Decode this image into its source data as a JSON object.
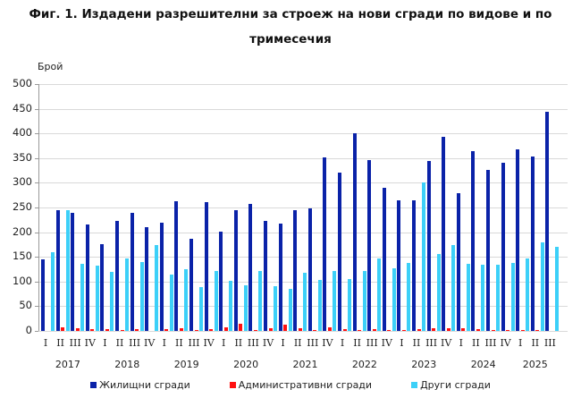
{
  "title_line1": "Фиг. 1. Издадени разрешителни за строеж на нови сгради по видове и по",
  "title_line2": "тримесечия",
  "colors": {
    "residential": "#0a22a8",
    "administrative": "#ff1010",
    "other": "#3cd0f8"
  },
  "chart_data": {
    "type": "bar",
    "title": "Фиг. 1. Издадени разрешителни за строеж на нови сгради по видове и по тримесечия",
    "xlabel": "",
    "ylabel": "Брой",
    "ylim": [
      0,
      500
    ],
    "yticks": [
      0,
      50,
      100,
      150,
      200,
      250,
      300,
      350,
      400,
      450,
      500
    ],
    "grid": true,
    "legend_position": "bottom",
    "years": [
      "2017",
      "2018",
      "2019",
      "2020",
      "2021",
      "2022",
      "2023",
      "2024",
      "2025"
    ],
    "categories": [
      "2017 I",
      "2017 II",
      "2017 III",
      "2017 IV",
      "2018 I",
      "2018 II",
      "2018 III",
      "2018 IV",
      "2019 I",
      "2019 II",
      "2019 III",
      "2019 IV",
      "2020 I",
      "2020 II",
      "2020 III",
      "2020 IV",
      "2021 I",
      "2021 II",
      "2021 III",
      "2021 IV",
      "2022 I",
      "2022 II",
      "2022 III",
      "2022 IV",
      "2023 I",
      "2023 II",
      "2023 III",
      "2023 IV",
      "2024 I",
      "2024 II",
      "2024 III",
      "2024 IV",
      "2025 I",
      "2025 II",
      "2025 III"
    ],
    "quarter_labels": [
      "I",
      "II",
      "III",
      "IV",
      "I",
      "II",
      "III",
      "IV",
      "I",
      "II",
      "III",
      "IV",
      "I",
      "II",
      "III",
      "IV",
      "I",
      "II",
      "III",
      "IV",
      "I",
      "II",
      "III",
      "IV",
      "I",
      "II",
      "III",
      "IV",
      "I",
      "II",
      "III",
      "IV",
      "I",
      "II",
      "III"
    ],
    "series": [
      {
        "name": "Жилищни сгради",
        "values": [
          145,
          245,
          240,
          215,
          176,
          223,
          240,
          210,
          220,
          263,
          187,
          261,
          201,
          245,
          257,
          222,
          217,
          244,
          248,
          352,
          321,
          400,
          346,
          290,
          265,
          265,
          345,
          393,
          279,
          365,
          327,
          341,
          368,
          353,
          443
        ]
      },
      {
        "name": "Административни сгради",
        "values": [
          0,
          7,
          5,
          4,
          3,
          2,
          4,
          0,
          3,
          5,
          1,
          4,
          8,
          14,
          1,
          5,
          12,
          6,
          2,
          7,
          3,
          1,
          3,
          1,
          1,
          3,
          6,
          6,
          5,
          3,
          1,
          1,
          1,
          2,
          0
        ]
      },
      {
        "name": "Други сгради",
        "values": [
          159,
          244,
          135,
          132,
          120,
          146,
          140,
          174,
          115,
          125,
          88,
          122,
          101,
          93,
          121,
          91,
          86,
          118,
          104,
          122,
          106,
          122,
          146,
          127,
          137,
          300,
          155,
          174,
          135,
          134,
          134,
          138,
          147,
          180,
          171
        ]
      }
    ]
  },
  "legend": {
    "items": [
      {
        "label": "Жилищни сгради"
      },
      {
        "label": "Административни сгради"
      },
      {
        "label": "Други сгради"
      }
    ]
  }
}
